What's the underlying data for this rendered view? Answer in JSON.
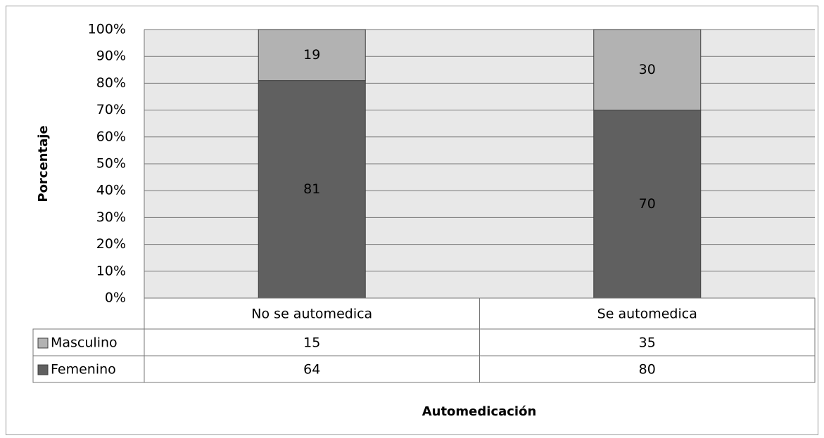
{
  "chart_data": {
    "type": "stacked_bar",
    "x_label": "Automedicación",
    "y_label": "Porcentaje",
    "categories": [
      "No se automedica",
      "Se automedica"
    ],
    "series": [
      {
        "name": "Femenino",
        "color": "#606060",
        "values": [
          81,
          70
        ],
        "counts": [
          64,
          80
        ]
      },
      {
        "name": "Masculino",
        "color": "#b2b2b2",
        "values": [
          19,
          30
        ],
        "counts": [
          15,
          35
        ]
      }
    ],
    "ylim": [
      0,
      100
    ],
    "yticks": [
      {
        "value": 0,
        "label": "0%"
      },
      {
        "value": 10,
        "label": "10%"
      },
      {
        "value": 20,
        "label": "20%"
      },
      {
        "value": 30,
        "label": "30%"
      },
      {
        "value": 40,
        "label": "40%"
      },
      {
        "value": 50,
        "label": "50%"
      },
      {
        "value": 60,
        "label": "60%"
      },
      {
        "value": 70,
        "label": "70%"
      },
      {
        "value": 80,
        "label": "80%"
      },
      {
        "value": 90,
        "label": "90%"
      },
      {
        "value": 100,
        "label": "100%"
      }
    ],
    "grid": true,
    "plot_background": "#e8e8e8"
  }
}
